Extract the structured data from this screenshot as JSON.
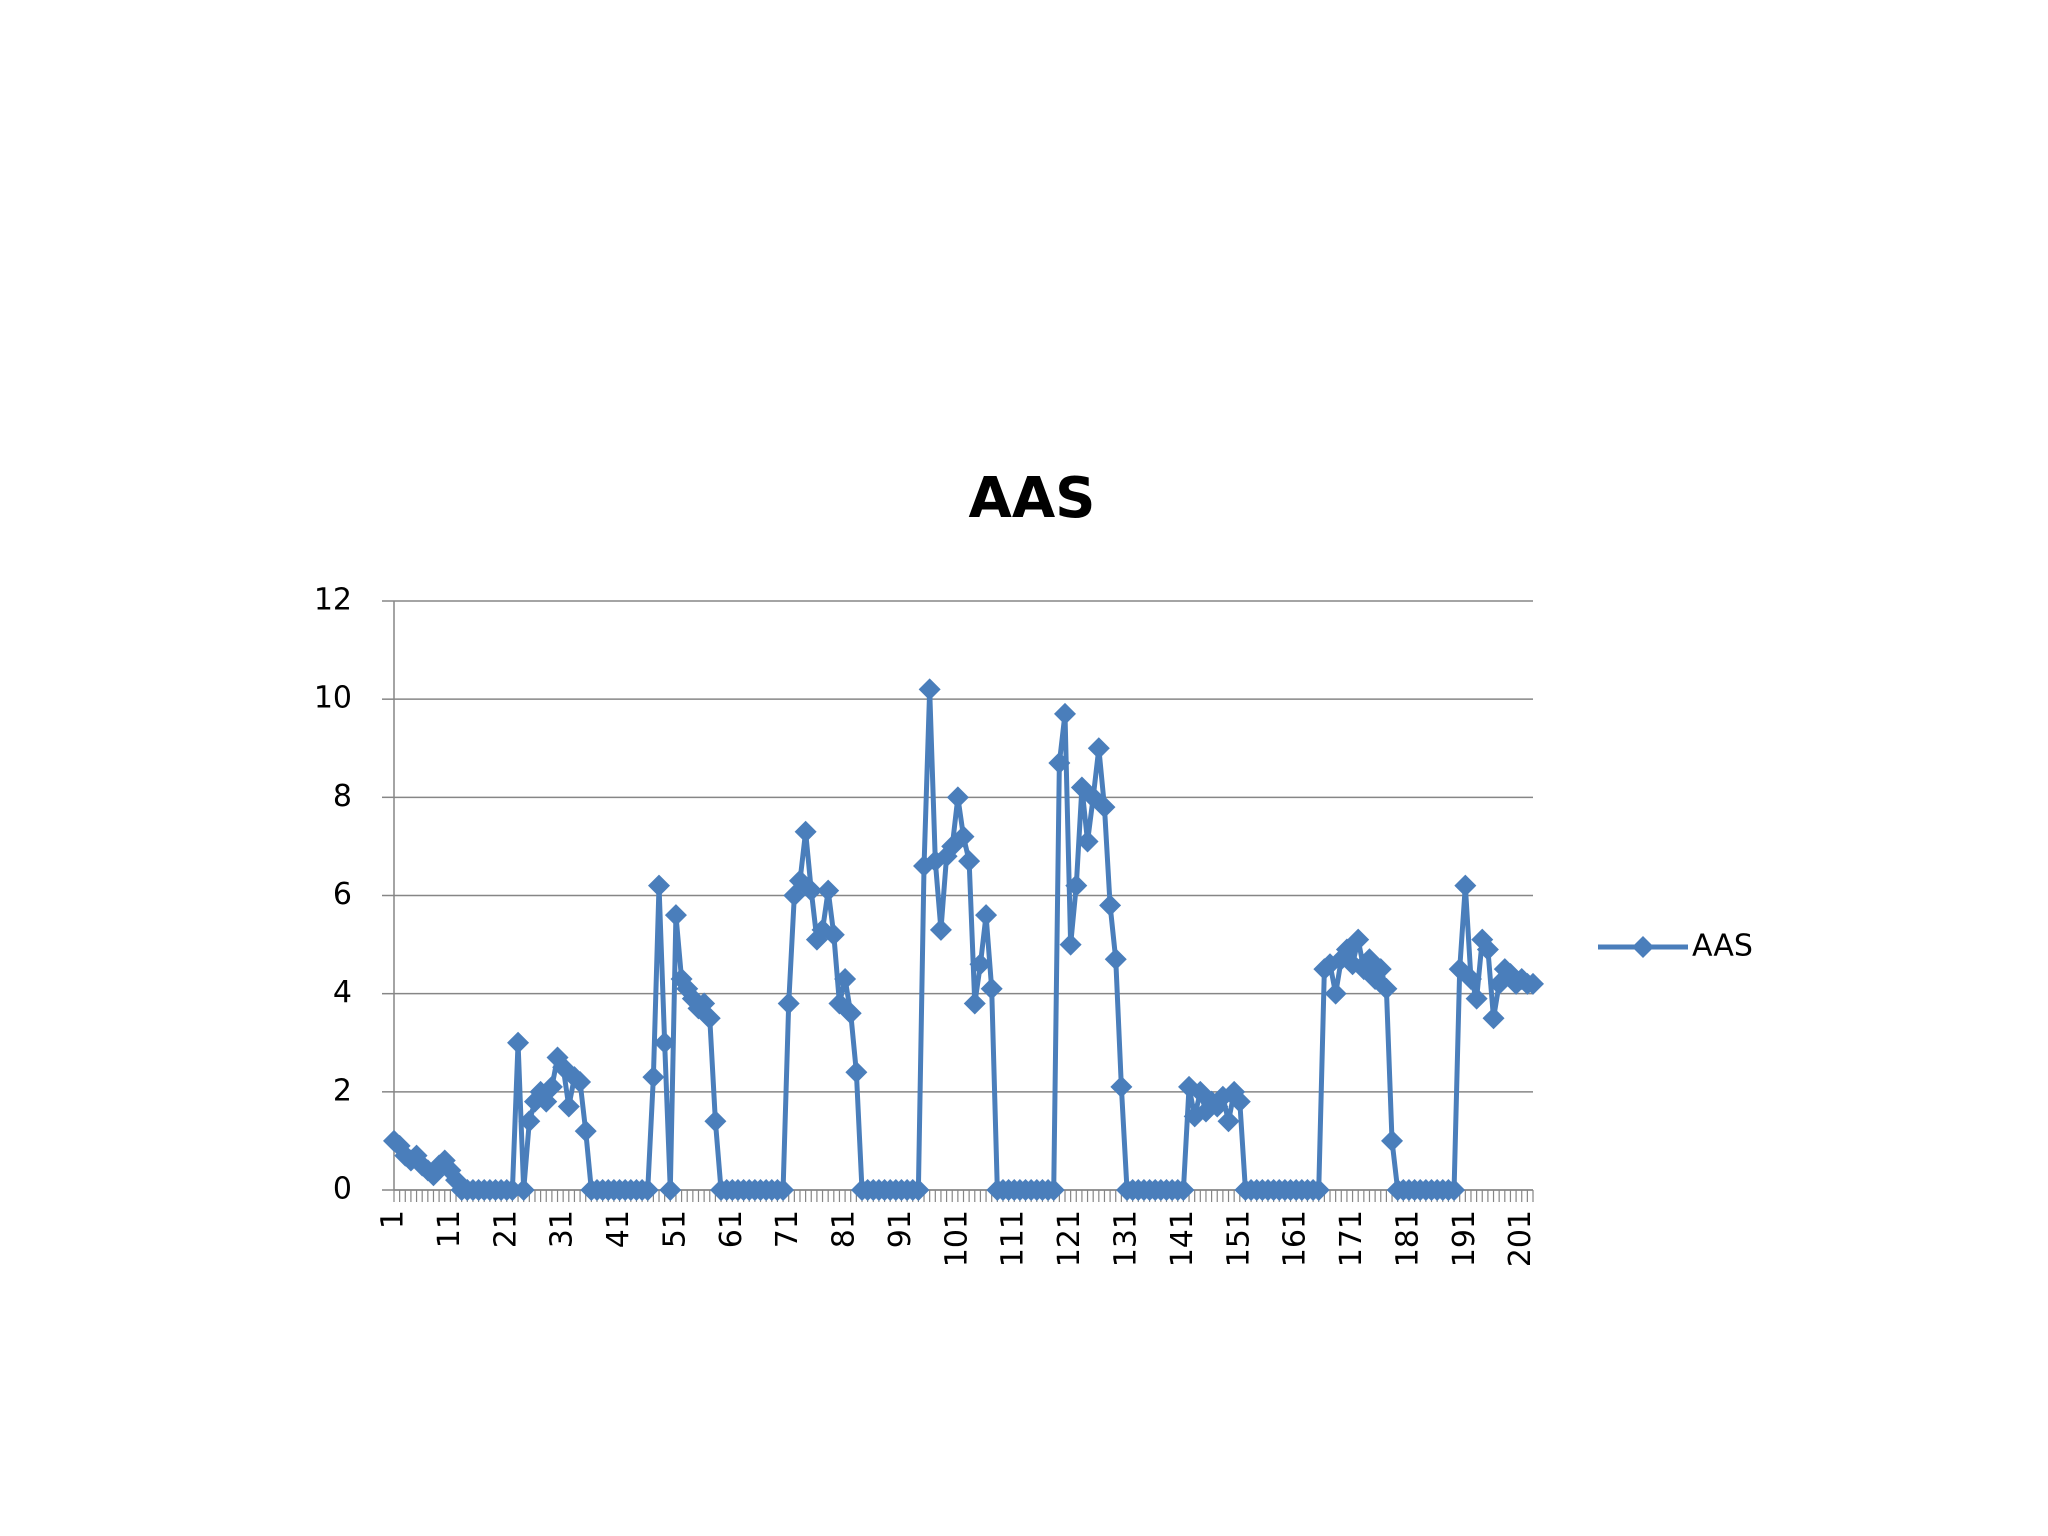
{
  "chart_data": {
    "type": "line",
    "title": "AAS",
    "categories": [
      "1",
      null,
      null,
      null,
      null,
      null,
      null,
      null,
      null,
      null,
      "11",
      null,
      null,
      null,
      null,
      null,
      null,
      null,
      null,
      null,
      "21",
      null,
      null,
      null,
      null,
      null,
      null,
      null,
      null,
      null,
      "31",
      null,
      null,
      null,
      null,
      null,
      null,
      null,
      null,
      null,
      "41",
      null,
      null,
      null,
      null,
      null,
      null,
      null,
      null,
      null,
      "51",
      null,
      null,
      null,
      null,
      null,
      null,
      null,
      null,
      null,
      "61",
      null,
      null,
      null,
      null,
      null,
      null,
      null,
      null,
      null,
      "71",
      null,
      null,
      null,
      null,
      null,
      null,
      null,
      null,
      null,
      "81",
      null,
      null,
      null,
      null,
      null,
      null,
      null,
      null,
      null,
      "91",
      null,
      null,
      null,
      null,
      null,
      null,
      null,
      null,
      null,
      "101",
      null,
      null,
      null,
      null,
      null,
      null,
      null,
      null,
      null,
      "111",
      null,
      null,
      null,
      null,
      null,
      null,
      null,
      null,
      null,
      "121",
      null,
      null,
      null,
      null,
      null,
      null,
      null,
      null,
      null,
      "131",
      null,
      null,
      null,
      null,
      null,
      null,
      null,
      null,
      null,
      "141",
      null,
      null,
      null,
      null,
      null,
      null,
      null,
      null,
      null,
      "151",
      null,
      null,
      null,
      null,
      null,
      null,
      null,
      null,
      null,
      "161",
      null,
      null,
      null,
      null,
      null,
      null,
      null,
      null,
      null,
      "171",
      null,
      null,
      null,
      null,
      null,
      null,
      null,
      null,
      null,
      "181",
      null,
      null,
      null,
      null,
      null,
      null,
      null,
      null,
      null,
      "191",
      null,
      null,
      null,
      null,
      null,
      null,
      null,
      null,
      null,
      "201",
      null,
      null
    ],
    "series": [
      {
        "name": "AAS",
        "color": "#4a7ebb",
        "values": [
          1.0,
          0.9,
          0.7,
          0.6,
          0.7,
          0.5,
          0.4,
          0.3,
          0.5,
          0.6,
          0.4,
          0.2,
          0,
          0,
          0,
          0,
          0,
          0,
          0,
          0,
          0,
          0,
          3.0,
          0,
          1.4,
          1.8,
          2.0,
          1.8,
          2.1,
          2.7,
          2.5,
          1.7,
          2.3,
          2.2,
          1.2,
          0,
          0,
          0,
          0,
          0,
          0,
          0,
          0,
          0,
          0,
          0,
          2.3,
          6.2,
          3.0,
          0,
          5.6,
          4.3,
          4.1,
          3.9,
          3.7,
          3.8,
          3.5,
          1.4,
          0,
          0,
          0,
          0,
          0,
          0,
          0,
          0,
          0,
          0,
          0,
          0,
          3.8,
          6.0,
          6.3,
          7.3,
          6.1,
          5.1,
          5.3,
          6.1,
          5.2,
          3.8,
          4.3,
          3.6,
          2.4,
          0,
          0,
          0,
          0,
          0,
          0,
          0,
          0,
          0,
          0,
          0,
          6.6,
          10.2,
          6.7,
          5.3,
          6.8,
          7.0,
          8.0,
          7.2,
          6.7,
          3.8,
          4.6,
          5.6,
          4.1,
          0,
          0,
          0,
          0,
          0,
          0,
          0,
          0,
          0,
          0,
          0,
          8.7,
          9.7,
          5.0,
          6.2,
          8.2,
          7.1,
          8.0,
          9.0,
          7.8,
          5.8,
          4.7,
          2.1,
          0,
          0,
          0,
          0,
          0,
          0,
          0,
          0,
          0,
          0,
          0,
          2.1,
          1.5,
          2.0,
          1.6,
          1.8,
          1.7,
          1.9,
          1.4,
          2.0,
          1.8,
          0,
          0,
          0,
          0,
          0,
          0,
          0,
          0,
          0,
          0,
          0,
          0,
          0,
          0,
          4.5,
          4.6,
          4.0,
          4.7,
          4.9,
          4.6,
          5.1,
          4.5,
          4.7,
          4.3,
          4.5,
          4.1,
          1.0,
          0,
          0,
          0,
          0,
          0,
          0,
          0,
          0,
          0,
          0,
          0,
          4.5,
          6.2,
          4.3,
          3.9,
          5.1,
          4.9,
          3.5,
          4.2,
          4.5,
          4.4,
          4.2,
          4.3,
          4.2,
          4.2
        ]
      }
    ],
    "ylim": [
      0,
      12
    ],
    "yticks": [
      0,
      2,
      4,
      6,
      8,
      10,
      12
    ],
    "grid": true,
    "legend": "right"
  }
}
